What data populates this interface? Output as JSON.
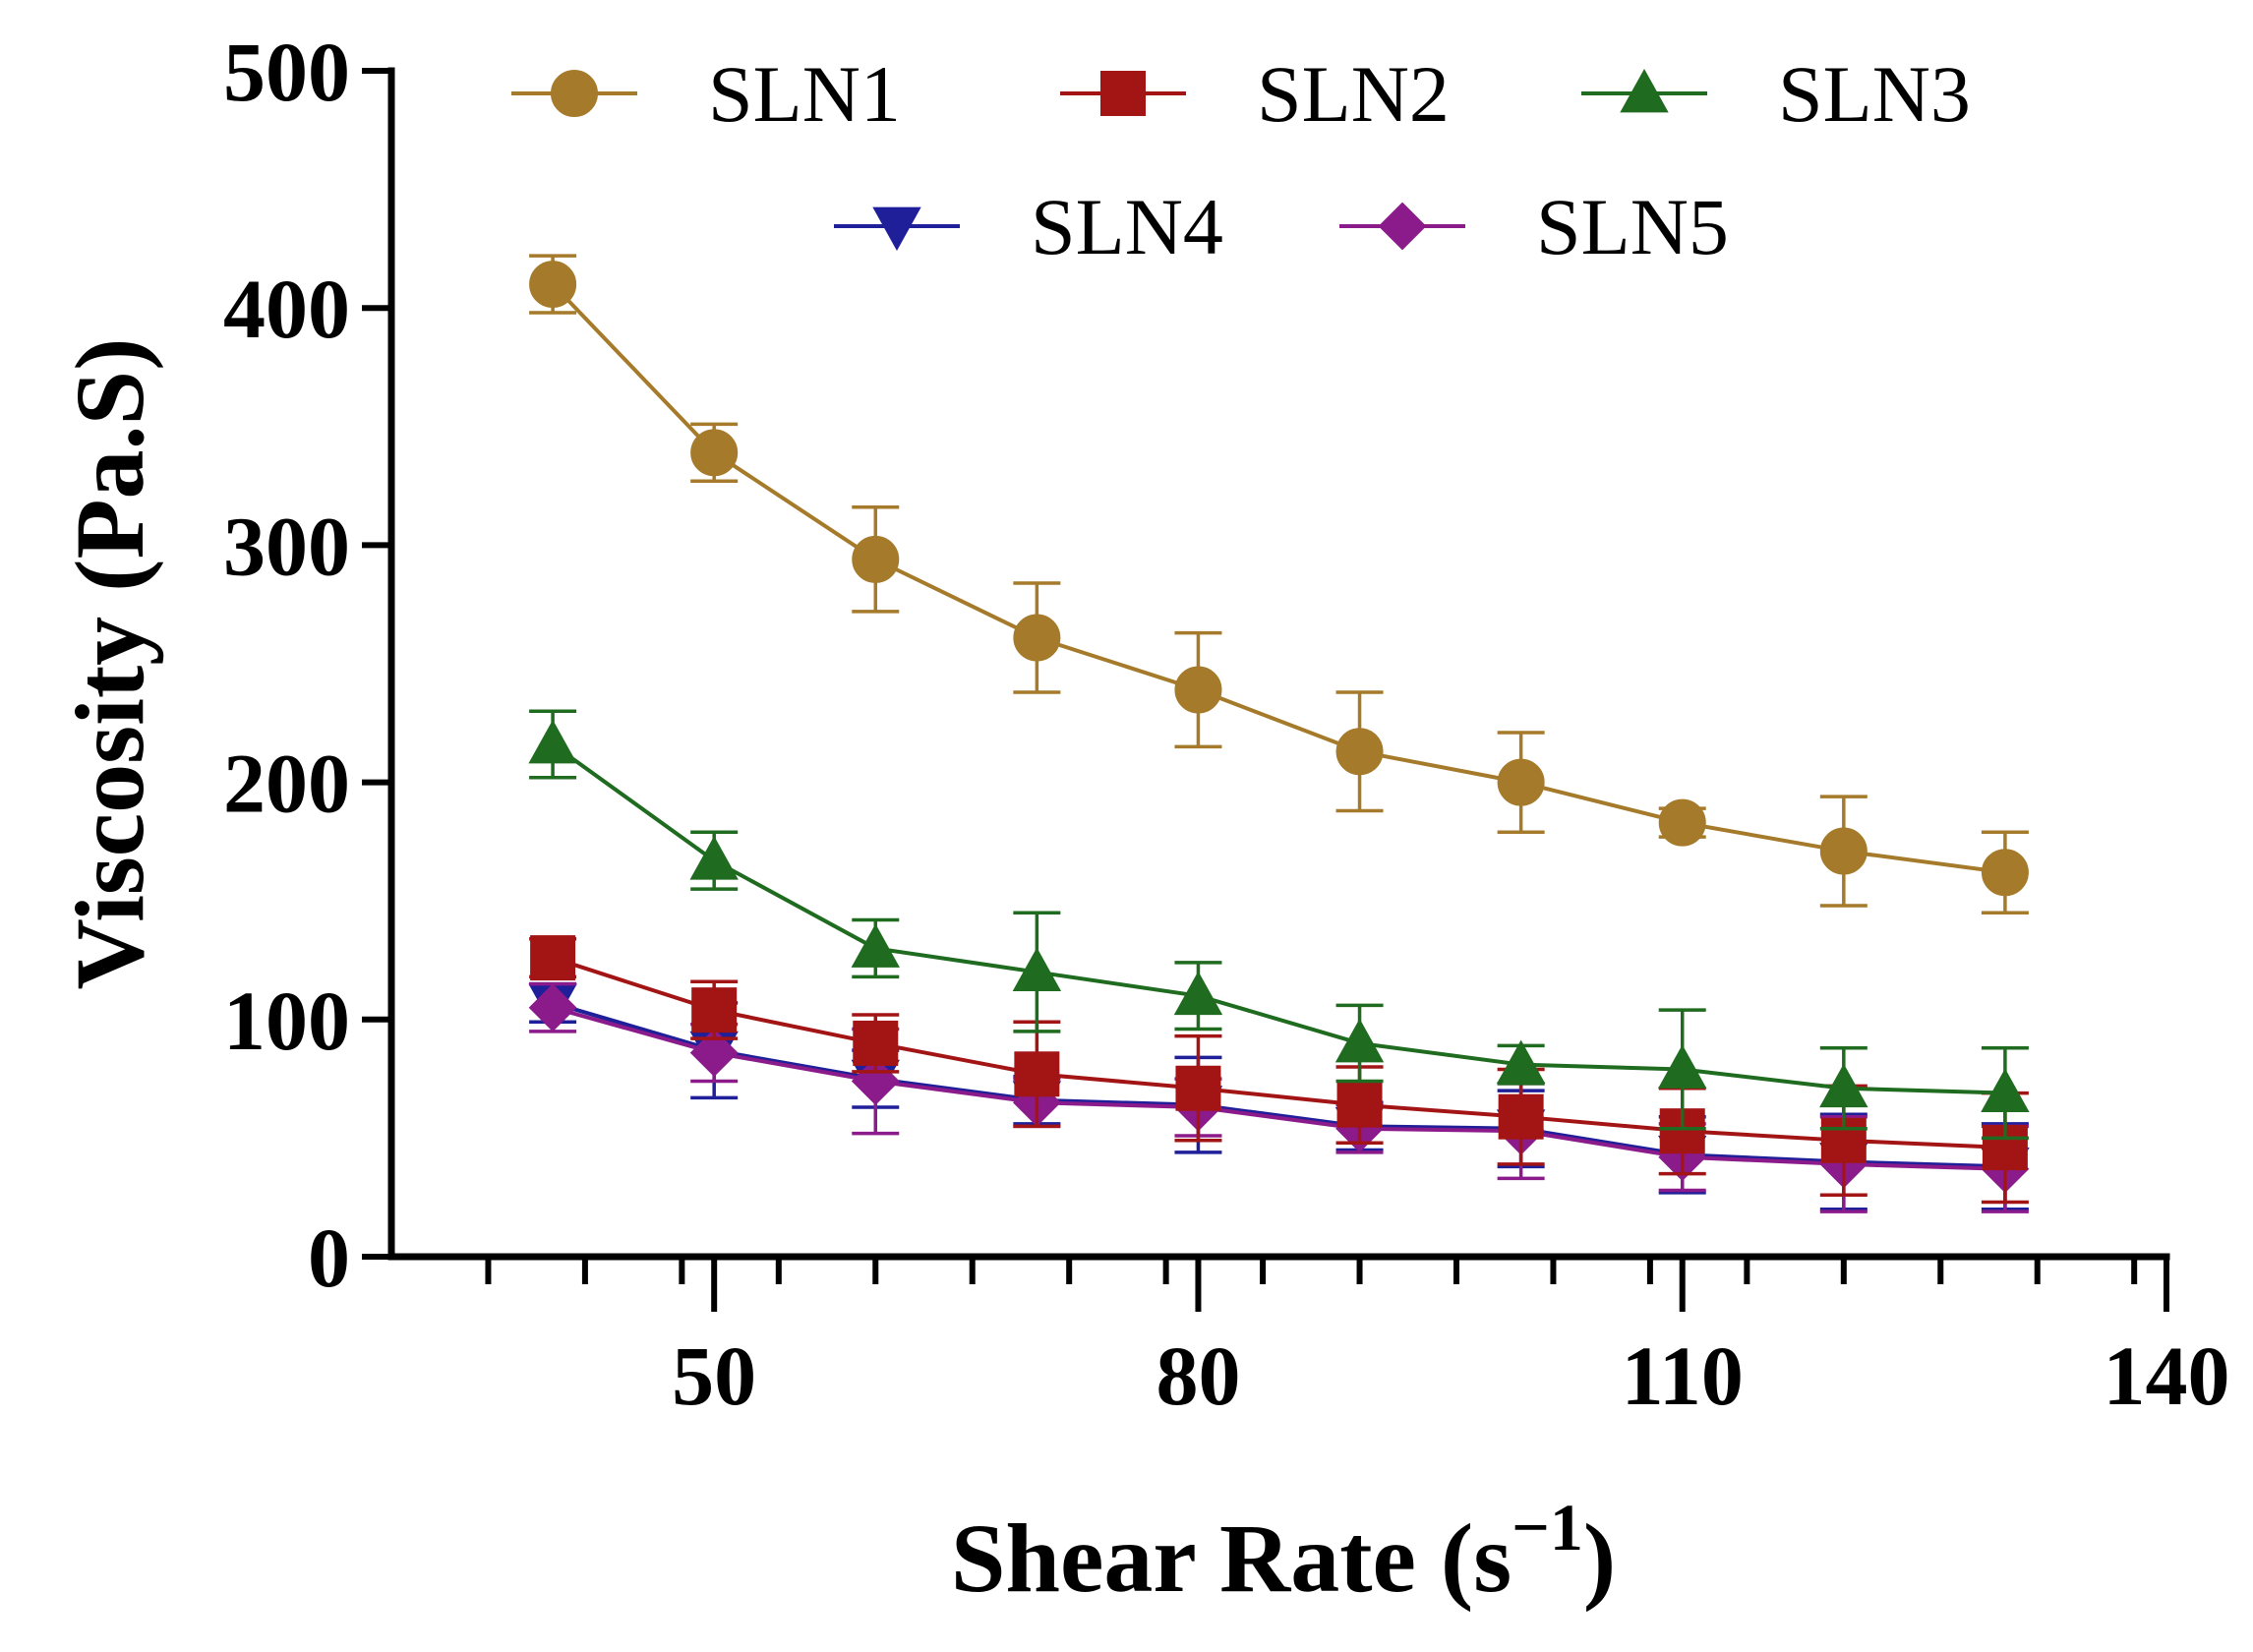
{
  "chart_data": {
    "type": "line",
    "title": "",
    "xlabel": "Shear Rate (s",
    "xlabel_superscript": "−1",
    "xlabel_close": ")",
    "ylabel": "Viscosity (Pa.S)",
    "xlim": [
      30,
      140
    ],
    "ylim": [
      0,
      500
    ],
    "x_ticks": [
      50,
      80,
      110,
      140
    ],
    "y_ticks": [
      0,
      100,
      200,
      300,
      400,
      500
    ],
    "x_minor_step": 6,
    "legend_position": "top",
    "x": [
      40,
      50,
      60,
      70,
      80,
      90,
      100,
      110,
      120,
      130
    ],
    "series": [
      {
        "name": "SLN1",
        "color": "#A57A2A",
        "marker": "circle",
        "values": [
          410,
          339,
          294,
          261,
          239,
          213,
          200,
          183,
          171,
          162
        ],
        "errors": [
          12,
          12,
          22,
          23,
          24,
          25,
          21,
          6,
          23,
          17
        ]
      },
      {
        "name": "SLN2",
        "color": "#A31515",
        "marker": "square",
        "values": [
          126,
          104,
          90,
          77,
          71,
          64,
          59,
          53,
          49,
          46
        ],
        "errors": [
          8,
          12,
          12,
          22,
          22,
          16,
          20,
          18,
          23,
          23
        ]
      },
      {
        "name": "SLN3",
        "color": "#1F6B1F",
        "marker": "triangle-up",
        "values": [
          216,
          167,
          130,
          120,
          110,
          90,
          81,
          79,
          71,
          69
        ],
        "errors": [
          14,
          12,
          12,
          25,
          14,
          16,
          8,
          25,
          17,
          19
        ]
      },
      {
        "name": "SLN4",
        "color": "#1F1F99",
        "marker": "triangle-down",
        "values": [
          107,
          87,
          75,
          66,
          64,
          55,
          54,
          43,
          40,
          38
        ],
        "errors": [
          8,
          20,
          12,
          10,
          20,
          10,
          16,
          16,
          20,
          18
        ]
      },
      {
        "name": "SLN5",
        "color": "#8B1A8B",
        "marker": "diamond",
        "values": [
          105,
          86,
          74,
          65,
          63,
          54,
          53,
          42,
          39,
          37
        ],
        "errors": [
          10,
          12,
          22,
          10,
          12,
          10,
          20,
          14,
          20,
          18
        ]
      }
    ]
  }
}
